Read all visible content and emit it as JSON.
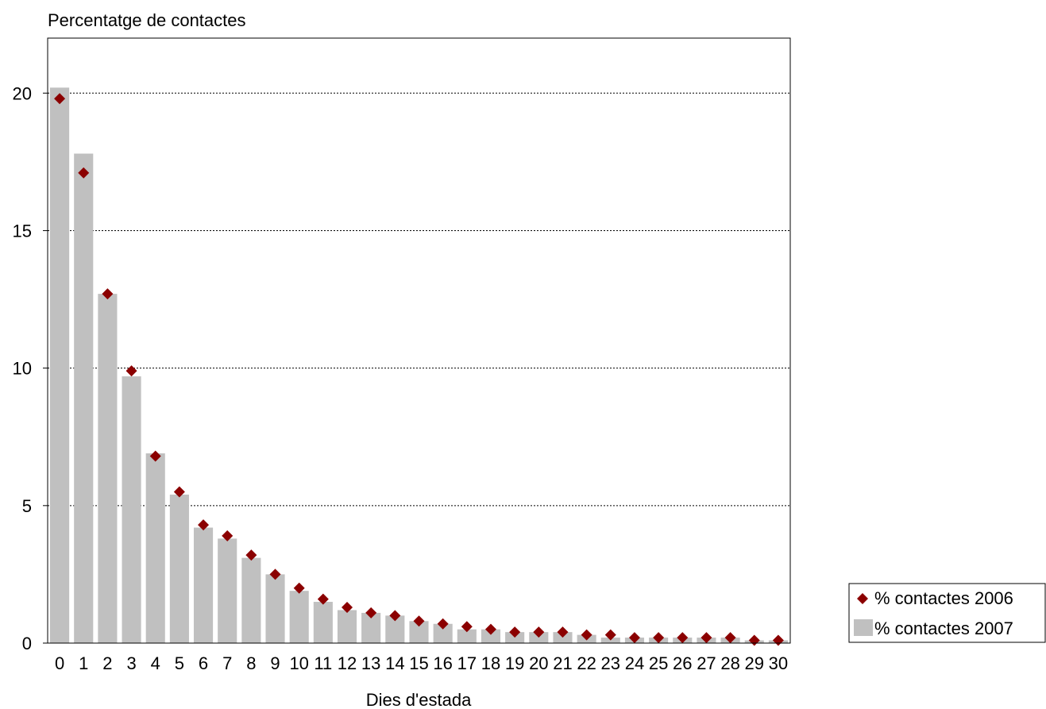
{
  "chart_data": {
    "type": "bar",
    "ylabel": "Percentatge de contactes",
    "xlabel": "Dies d'estada",
    "categories": [
      "0",
      "1",
      "2",
      "3",
      "4",
      "5",
      "6",
      "7",
      "8",
      "9",
      "10",
      "11",
      "12",
      "13",
      "14",
      "15",
      "16",
      "17",
      "18",
      "19",
      "20",
      "21",
      "22",
      "23",
      "24",
      "25",
      "26",
      "27",
      "28",
      "29",
      "30"
    ],
    "ylim": [
      0,
      22
    ],
    "yticks": [
      0,
      5,
      10,
      15,
      20
    ],
    "grid": true,
    "legend_position": "right",
    "series": [
      {
        "name": "% contactes 2007",
        "kind": "bar",
        "color": "#c0c0c0",
        "values": [
          20.2,
          17.8,
          12.7,
          9.7,
          6.9,
          5.4,
          4.2,
          3.8,
          3.1,
          2.5,
          1.9,
          1.5,
          1.2,
          1.1,
          1.0,
          0.8,
          0.7,
          0.5,
          0.5,
          0.4,
          0.4,
          0.4,
          0.3,
          0.2,
          0.2,
          0.2,
          0.2,
          0.2,
          0.2,
          0.1,
          0.1
        ]
      },
      {
        "name": "% contactes 2006",
        "kind": "marker",
        "marker": "diamond",
        "color": "#8b0000",
        "values": [
          19.8,
          17.1,
          12.7,
          9.9,
          6.8,
          5.5,
          4.3,
          3.9,
          3.2,
          2.5,
          2.0,
          1.6,
          1.3,
          1.1,
          1.0,
          0.8,
          0.7,
          0.6,
          0.5,
          0.4,
          0.4,
          0.4,
          0.3,
          0.3,
          0.2,
          0.2,
          0.2,
          0.2,
          0.2,
          0.1,
          0.1
        ]
      }
    ]
  }
}
